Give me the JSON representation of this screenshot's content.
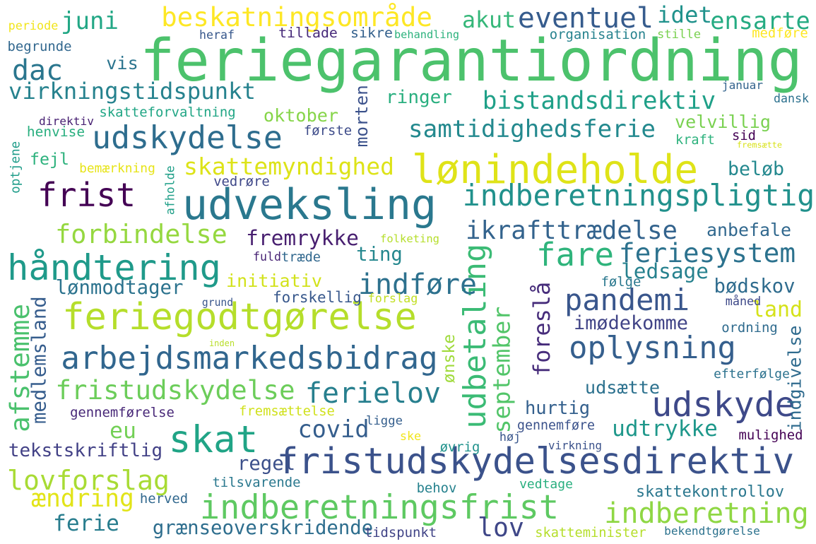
{
  "words": [
    {
      "text": "feriegarantiordning",
      "color": "#4cc26c"
    },
    {
      "text": "udveksling",
      "color": "#2a788e"
    },
    {
      "text": "lønindeholde",
      "color": "#dfe318"
    },
    {
      "text": "feriegodtgørelse",
      "color": "#b5de2b"
    },
    {
      "text": "arbejdsmarkedsbidrag",
      "color": "#31668e"
    },
    {
      "text": "fristudskydelsesdirektiv",
      "color": "#3b528b"
    },
    {
      "text": "indberetningsfrist",
      "color": "#5ec962"
    },
    {
      "text": "håndtering",
      "color": "#1f9a8a"
    },
    {
      "text": "udskydelse",
      "color": "#2e6d8e"
    },
    {
      "text": "frist",
      "color": "#440154"
    },
    {
      "text": "indberetningspligtig",
      "color": "#21918c"
    },
    {
      "text": "udbetaling",
      "color": "#3bbb75"
    },
    {
      "text": "udskyde",
      "color": "#3e4989"
    },
    {
      "text": "oplysning",
      "color": "#355f8d"
    },
    {
      "text": "skat",
      "color": "#20a486"
    },
    {
      "text": "fare",
      "color": "#2fb47c"
    },
    {
      "text": "pandemi",
      "color": "#39568c"
    },
    {
      "text": "bistandsdirektiv",
      "color": "#1fa088"
    },
    {
      "text": "samtidighedsferie",
      "color": "#23898e"
    },
    {
      "text": "fristudskydelse",
      "color": "#6ccd5a"
    },
    {
      "text": "ferielov",
      "color": "#277f8e"
    },
    {
      "text": "lovforslag",
      "color": "#a8db34"
    },
    {
      "text": "indberetning",
      "color": "#8fd744"
    },
    {
      "text": "ikrafttrædelse",
      "color": "#33638d"
    },
    {
      "text": "feriesystem",
      "color": "#2c728e"
    },
    {
      "text": "beskatningsområde",
      "color": "#fde725"
    },
    {
      "text": "forbindelse",
      "color": "#95d840"
    },
    {
      "text": "eventuel",
      "color": "#365c8d"
    },
    {
      "text": "skattemyndighed",
      "color": "#dde318"
    },
    {
      "text": "virkningstidspunkt",
      "color": "#26828e"
    },
    {
      "text": "indføre",
      "color": "#2d718e"
    },
    {
      "text": "september",
      "color": "#52c569"
    },
    {
      "text": "foreslå",
      "color": "#472d7b"
    },
    {
      "text": "afstemme",
      "color": "#4ac16d"
    },
    {
      "text": "fremrykke",
      "color": "#481f70"
    },
    {
      "text": "juni",
      "color": "#22a785"
    },
    {
      "text": "dac",
      "color": "#2a768e"
    },
    {
      "text": "akut",
      "color": "#35b779"
    },
    {
      "text": "idet",
      "color": "#20928c"
    },
    {
      "text": "ensarte",
      "color": "#25ab82"
    },
    {
      "text": "ringer",
      "color": "#29af7f"
    },
    {
      "text": "beløb",
      "color": "#23888e"
    },
    {
      "text": "anbefale",
      "color": "#31688e"
    },
    {
      "text": "covid",
      "color": "#355e8d"
    },
    {
      "text": "eu",
      "color": "#73d056"
    },
    {
      "text": "land",
      "color": "#d5e21a"
    },
    {
      "text": "lov",
      "color": "#3f4788"
    },
    {
      "text": "ferie",
      "color": "#287d8e"
    },
    {
      "text": "udtrykke",
      "color": "#1f988b"
    },
    {
      "text": "medlemsland",
      "color": "#365d8d"
    },
    {
      "text": "tekstskriftlig",
      "color": "#424186"
    },
    {
      "text": "ændring",
      "color": "#e2e418"
    },
    {
      "text": "skattekontrollov",
      "color": "#2a778e"
    },
    {
      "text": "grænseoverskridende",
      "color": "#2e6e8e"
    },
    {
      "text": "regel",
      "color": "#3c508b"
    },
    {
      "text": "hurtig",
      "color": "#34608d"
    },
    {
      "text": "udsætte",
      "color": "#2c718e"
    },
    {
      "text": "indgivelse",
      "color": "#2f6b8e"
    },
    {
      "text": "oktober",
      "color": "#86d549"
    },
    {
      "text": "velvillig",
      "color": "#7ad151"
    },
    {
      "text": "morten",
      "color": "#3b518b"
    },
    {
      "text": "ledsage",
      "color": "#26818e"
    },
    {
      "text": "bødskov",
      "color": "#2f6c8e"
    },
    {
      "text": "imødekomme",
      "color": "#414487"
    },
    {
      "text": "initiativ",
      "color": "#d2e21b"
    },
    {
      "text": "lønmodtager",
      "color": "#2c738e"
    },
    {
      "text": "ting",
      "color": "#24878e"
    },
    {
      "text": "vis",
      "color": "#2b748e"
    },
    {
      "text": "fejl",
      "color": "#2db27d"
    },
    {
      "text": "optjene",
      "color": "#1e9c89"
    },
    {
      "text": "skatteforvaltning",
      "color": "#21a685"
    },
    {
      "text": "direktiv",
      "color": "#482173"
    },
    {
      "text": "henvise",
      "color": "#29af7f"
    },
    {
      "text": "første",
      "color": "#3e4c8a"
    },
    {
      "text": "bemærkning",
      "color": "#e7e419"
    },
    {
      "text": "vedrøre",
      "color": "#3f4889"
    },
    {
      "text": "afholde",
      "color": "#1f9f88"
    },
    {
      "text": "periode",
      "color": "#f1e51d"
    },
    {
      "text": "begrunde",
      "color": "#31678e"
    },
    {
      "text": "heraf",
      "color": "#38588c"
    },
    {
      "text": "tillade",
      "color": "#472a7a"
    },
    {
      "text": "sikre",
      "color": "#34618d"
    },
    {
      "text": "behandling",
      "color": "#2db27d"
    },
    {
      "text": "organisation",
      "color": "#26828e"
    },
    {
      "text": "stille",
      "color": "#7ad151"
    },
    {
      "text": "medføre",
      "color": "#fde725"
    },
    {
      "text": "januar",
      "color": "#33638d"
    },
    {
      "text": "dansk",
      "color": "#2c718e"
    },
    {
      "text": "sid",
      "color": "#440154"
    },
    {
      "text": "kraft",
      "color": "#2db27d"
    },
    {
      "text": "fremsætte",
      "color": "#d8e219"
    },
    {
      "text": "folketing",
      "color": "#b5de2b"
    },
    {
      "text": "fuld",
      "color": "#482475"
    },
    {
      "text": "træde",
      "color": "#31688e"
    },
    {
      "text": "følge",
      "color": "#2a788e"
    },
    {
      "text": "grund",
      "color": "#39568c"
    },
    {
      "text": "forskellig",
      "color": "#38588c"
    },
    {
      "text": "forslag",
      "color": "#c2df23"
    },
    {
      "text": "måned",
      "color": "#3e4989"
    },
    {
      "text": "ordning",
      "color": "#2f6b8e"
    },
    {
      "text": "inden",
      "color": "#b8de29"
    },
    {
      "text": "ønske",
      "color": "#9fda3a"
    },
    {
      "text": "efterfølge",
      "color": "#2c728e"
    },
    {
      "text": "gennemførelse",
      "color": "#482878"
    },
    {
      "text": "fremsættelse",
      "color": "#d0e11c"
    },
    {
      "text": "ligge",
      "color": "#355f8d"
    },
    {
      "text": "ske",
      "color": "#f1e51d"
    },
    {
      "text": "høj",
      "color": "#39568c"
    },
    {
      "text": "gennemføre",
      "color": "#3b528b"
    },
    {
      "text": "mulighed",
      "color": "#440154"
    },
    {
      "text": "øvrig",
      "color": "#20928c"
    },
    {
      "text": "virkning",
      "color": "#3b528b"
    },
    {
      "text": "tilsvarende",
      "color": "#2a788e"
    },
    {
      "text": "behov",
      "color": "#26828e"
    },
    {
      "text": "vedtage",
      "color": "#29af7f"
    },
    {
      "text": "herved",
      "color": "#31688e"
    },
    {
      "text": "tidspunkt",
      "color": "#414487"
    },
    {
      "text": "skatteminister",
      "color": "#b5de2b"
    },
    {
      "text": "bekendtgørelse",
      "color": "#2c728e"
    }
  ]
}
